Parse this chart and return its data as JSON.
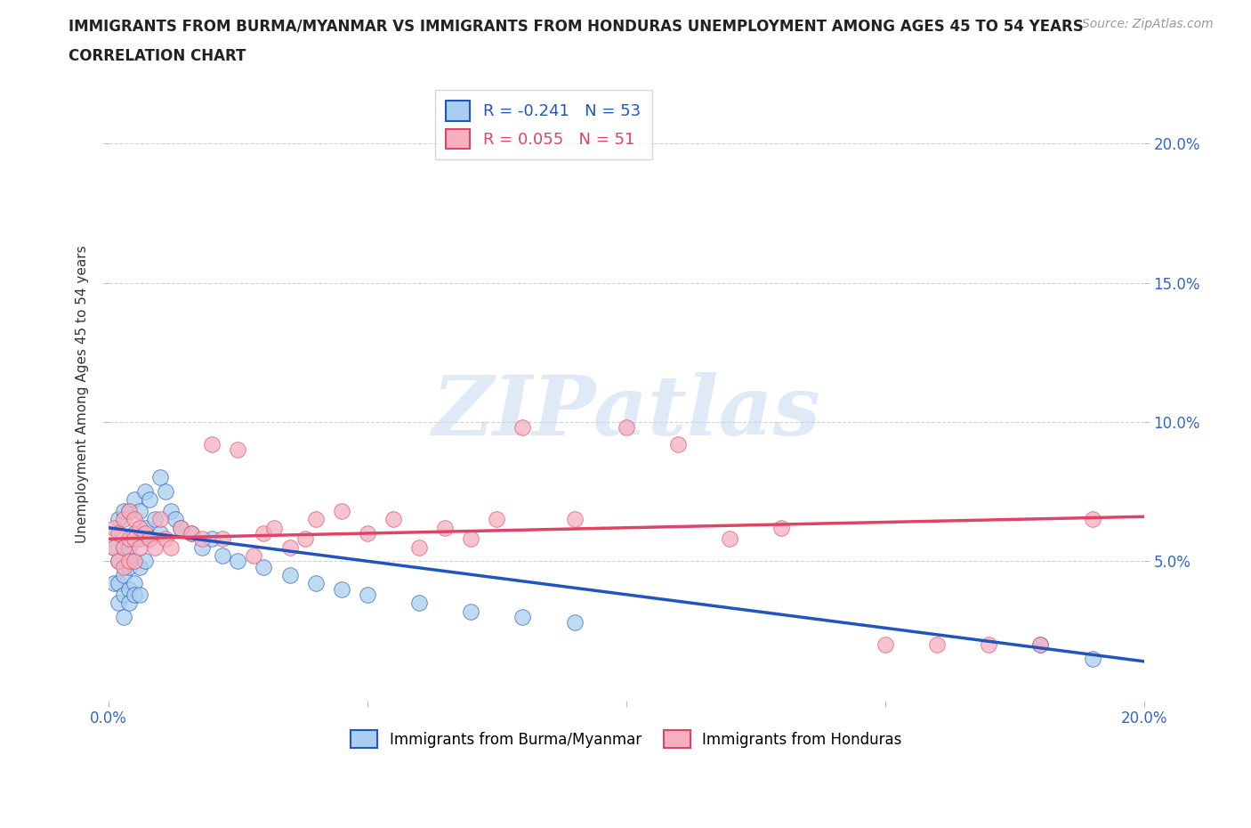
{
  "title_line1": "IMMIGRANTS FROM BURMA/MYANMAR VS IMMIGRANTS FROM HONDURAS UNEMPLOYMENT AMONG AGES 45 TO 54 YEARS",
  "title_line2": "CORRELATION CHART",
  "source": "Source: ZipAtlas.com",
  "legend_label_burma": "Immigrants from Burma/Myanmar",
  "legend_label_honduras": "Immigrants from Honduras",
  "ylabel": "Unemployment Among Ages 45 to 54 years",
  "xlim": [
    0.0,
    0.2
  ],
  "ylim": [
    0.0,
    0.22
  ],
  "yticks": [
    0.05,
    0.1,
    0.15,
    0.2
  ],
  "ytick_labels": [
    "5.0%",
    "10.0%",
    "15.0%",
    "20.0%"
  ],
  "xtick_left": "0.0%",
  "xtick_right": "20.0%",
  "color_burma": "#aacfee",
  "color_honduras": "#f5afbe",
  "line_color_burma": "#2255bb",
  "line_color_honduras": "#dd4466",
  "legend_R_burma": "R = -0.241",
  "legend_N_burma": "N = 53",
  "legend_R_honduras": "R = 0.055",
  "legend_N_honduras": "N = 51",
  "watermark": "ZIPatlas",
  "burma_line_x0": 0.0,
  "burma_line_y0": 0.062,
  "burma_line_x1": 0.2,
  "burma_line_y1": 0.014,
  "honduras_line_x0": 0.0,
  "honduras_line_y0": 0.058,
  "honduras_line_x1": 0.2,
  "honduras_line_y1": 0.066,
  "burma_x": [
    0.001,
    0.001,
    0.002,
    0.002,
    0.002,
    0.002,
    0.003,
    0.003,
    0.003,
    0.003,
    0.003,
    0.004,
    0.004,
    0.004,
    0.004,
    0.004,
    0.005,
    0.005,
    0.005,
    0.005,
    0.005,
    0.006,
    0.006,
    0.006,
    0.006,
    0.007,
    0.007,
    0.007,
    0.008,
    0.008,
    0.009,
    0.01,
    0.01,
    0.011,
    0.012,
    0.013,
    0.014,
    0.016,
    0.018,
    0.02,
    0.022,
    0.025,
    0.03,
    0.035,
    0.04,
    0.045,
    0.05,
    0.06,
    0.07,
    0.08,
    0.09,
    0.18,
    0.19
  ],
  "burma_y": [
    0.055,
    0.042,
    0.065,
    0.05,
    0.042,
    0.035,
    0.068,
    0.055,
    0.045,
    0.038,
    0.03,
    0.068,
    0.055,
    0.048,
    0.04,
    0.035,
    0.072,
    0.06,
    0.05,
    0.042,
    0.038,
    0.068,
    0.058,
    0.048,
    0.038,
    0.075,
    0.062,
    0.05,
    0.072,
    0.058,
    0.065,
    0.08,
    0.06,
    0.075,
    0.068,
    0.065,
    0.062,
    0.06,
    0.055,
    0.058,
    0.052,
    0.05,
    0.048,
    0.045,
    0.042,
    0.04,
    0.038,
    0.035,
    0.032,
    0.03,
    0.028,
    0.02,
    0.015
  ],
  "honduras_x": [
    0.001,
    0.001,
    0.002,
    0.002,
    0.003,
    0.003,
    0.003,
    0.004,
    0.004,
    0.004,
    0.005,
    0.005,
    0.005,
    0.006,
    0.006,
    0.007,
    0.008,
    0.009,
    0.01,
    0.011,
    0.012,
    0.014,
    0.016,
    0.018,
    0.02,
    0.022,
    0.025,
    0.028,
    0.03,
    0.032,
    0.035,
    0.038,
    0.04,
    0.045,
    0.05,
    0.055,
    0.06,
    0.065,
    0.07,
    0.075,
    0.08,
    0.09,
    0.1,
    0.11,
    0.12,
    0.13,
    0.15,
    0.16,
    0.17,
    0.18,
    0.19
  ],
  "honduras_y": [
    0.062,
    0.055,
    0.06,
    0.05,
    0.065,
    0.055,
    0.048,
    0.068,
    0.058,
    0.05,
    0.065,
    0.058,
    0.05,
    0.062,
    0.055,
    0.06,
    0.058,
    0.055,
    0.065,
    0.058,
    0.055,
    0.062,
    0.06,
    0.058,
    0.092,
    0.058,
    0.09,
    0.052,
    0.06,
    0.062,
    0.055,
    0.058,
    0.065,
    0.068,
    0.06,
    0.065,
    0.055,
    0.062,
    0.058,
    0.065,
    0.098,
    0.065,
    0.098,
    0.092,
    0.058,
    0.062,
    0.02,
    0.02,
    0.02,
    0.02,
    0.065
  ]
}
